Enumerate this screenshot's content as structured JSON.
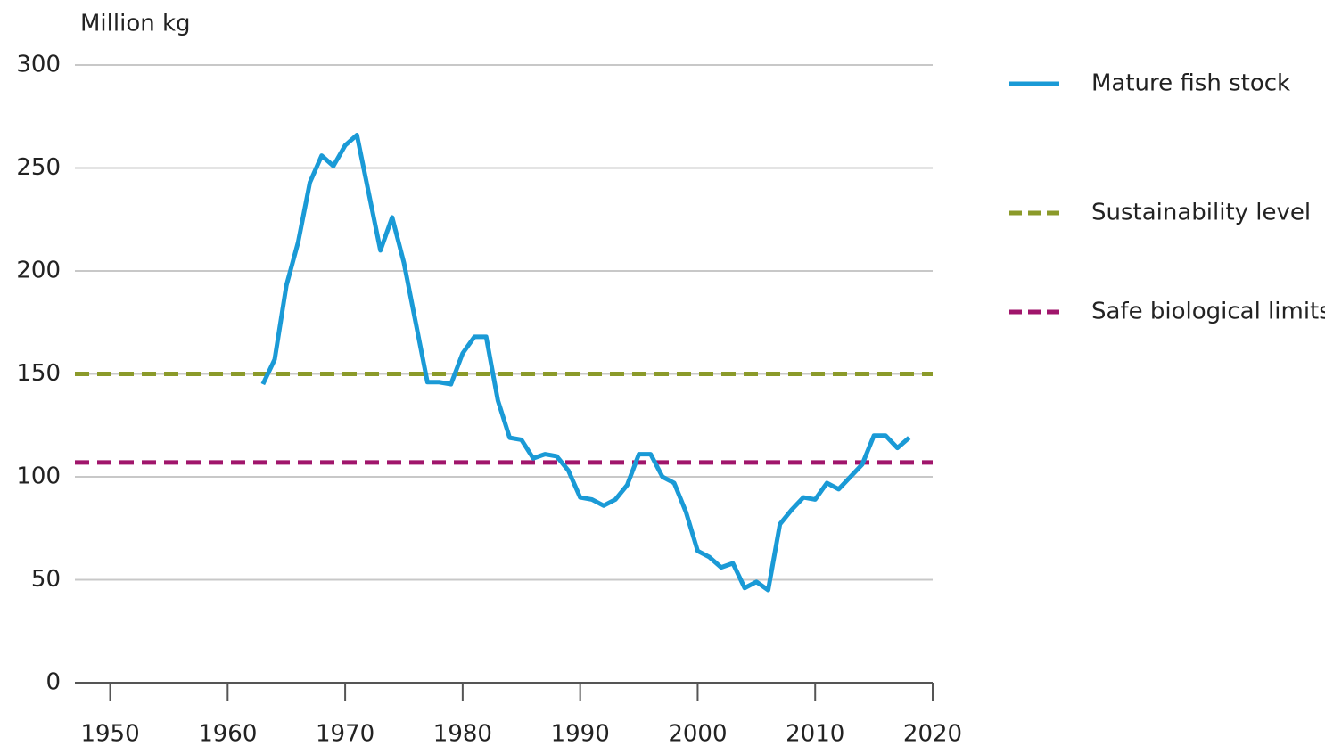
{
  "chart_data": {
    "type": "line",
    "y_label": "Million kg",
    "x": [
      1963,
      1964,
      1965,
      1966,
      1967,
      1968,
      1969,
      1970,
      1971,
      1972,
      1973,
      1974,
      1975,
      1976,
      1977,
      1978,
      1979,
      1980,
      1981,
      1982,
      1983,
      1984,
      1985,
      1986,
      1987,
      1988,
      1989,
      1990,
      1991,
      1992,
      1993,
      1994,
      1995,
      1996,
      1997,
      1998,
      1999,
      2000,
      2001,
      2002,
      2003,
      2004,
      2005,
      2006,
      2007,
      2008,
      2009,
      2010,
      2011,
      2012,
      2013,
      2014,
      2015,
      2016,
      2017,
      2018
    ],
    "series": [
      {
        "name": "Mature fish stock",
        "color": "#1a9ad6",
        "values": [
          145,
          157,
          193,
          214,
          243,
          256,
          251,
          261,
          266,
          238,
          210,
          226,
          204,
          175,
          146,
          146,
          145,
          160,
          168,
          168,
          137,
          119,
          118,
          109,
          111,
          110,
          103,
          90,
          89,
          86,
          89,
          96,
          111,
          111,
          100,
          97,
          83,
          64,
          61,
          56,
          58,
          46,
          49,
          45,
          77,
          84,
          90,
          89,
          97,
          94,
          100,
          106,
          120,
          120,
          114,
          119
        ]
      }
    ],
    "reference_lines": [
      {
        "name": "Sustainability level",
        "value": 150,
        "color": "#8b9a2a"
      },
      {
        "name": "Safe biological limits",
        "value": 107,
        "color": "#a0156b"
      }
    ],
    "xlim": [
      1947,
      2020
    ],
    "xticks": [
      1950,
      1960,
      1970,
      1980,
      1990,
      2000,
      2010,
      2020
    ],
    "ylim": [
      0,
      300
    ],
    "yticks": [
      0,
      50,
      100,
      150,
      200,
      250,
      300
    ],
    "grid": true,
    "legend": "right"
  }
}
